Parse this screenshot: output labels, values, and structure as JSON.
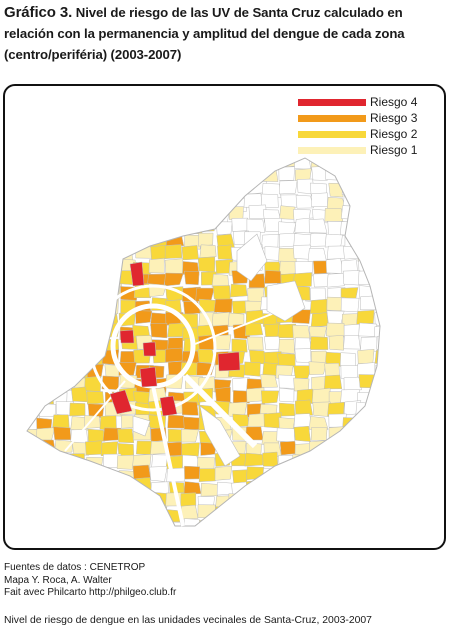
{
  "figure": {
    "title_lead": "Gráfico 3.",
    "title_rest": "Nivel de riesgo de las UV de Santa  Cruz  calculado en relación con la permanencia y amplitud del dengue de cada zona (centro/periféria) (2003-2007)"
  },
  "legend": [
    {
      "label": "Riesgo 4",
      "color": "#e0262f"
    },
    {
      "label": "Riesgo 3",
      "color": "#f29a1a"
    },
    {
      "label": "Riesgo 2",
      "color": "#f8d83a"
    },
    {
      "label": "Riesgo 1",
      "color": "#fdf1b8"
    }
  ],
  "colors": {
    "riesgo_4": "#e0262f",
    "riesgo_3": "#f29a1a",
    "riesgo_2": "#f8d83a",
    "riesgo_1": "#fdf1b8",
    "boundary": "#bdbdbd",
    "ring_roads": "#ffffff"
  },
  "sources": {
    "line1": "Fuentes de datos : CENETROP",
    "line2": "Mapa Y. Roca, A. Walter",
    "line3": "Fait avec Philcarto http://philgeo.club.fr"
  },
  "caption": "Nivel de riesgo de dengue en las unidades vecinales de Santa-Cruz, 2003-2007"
}
